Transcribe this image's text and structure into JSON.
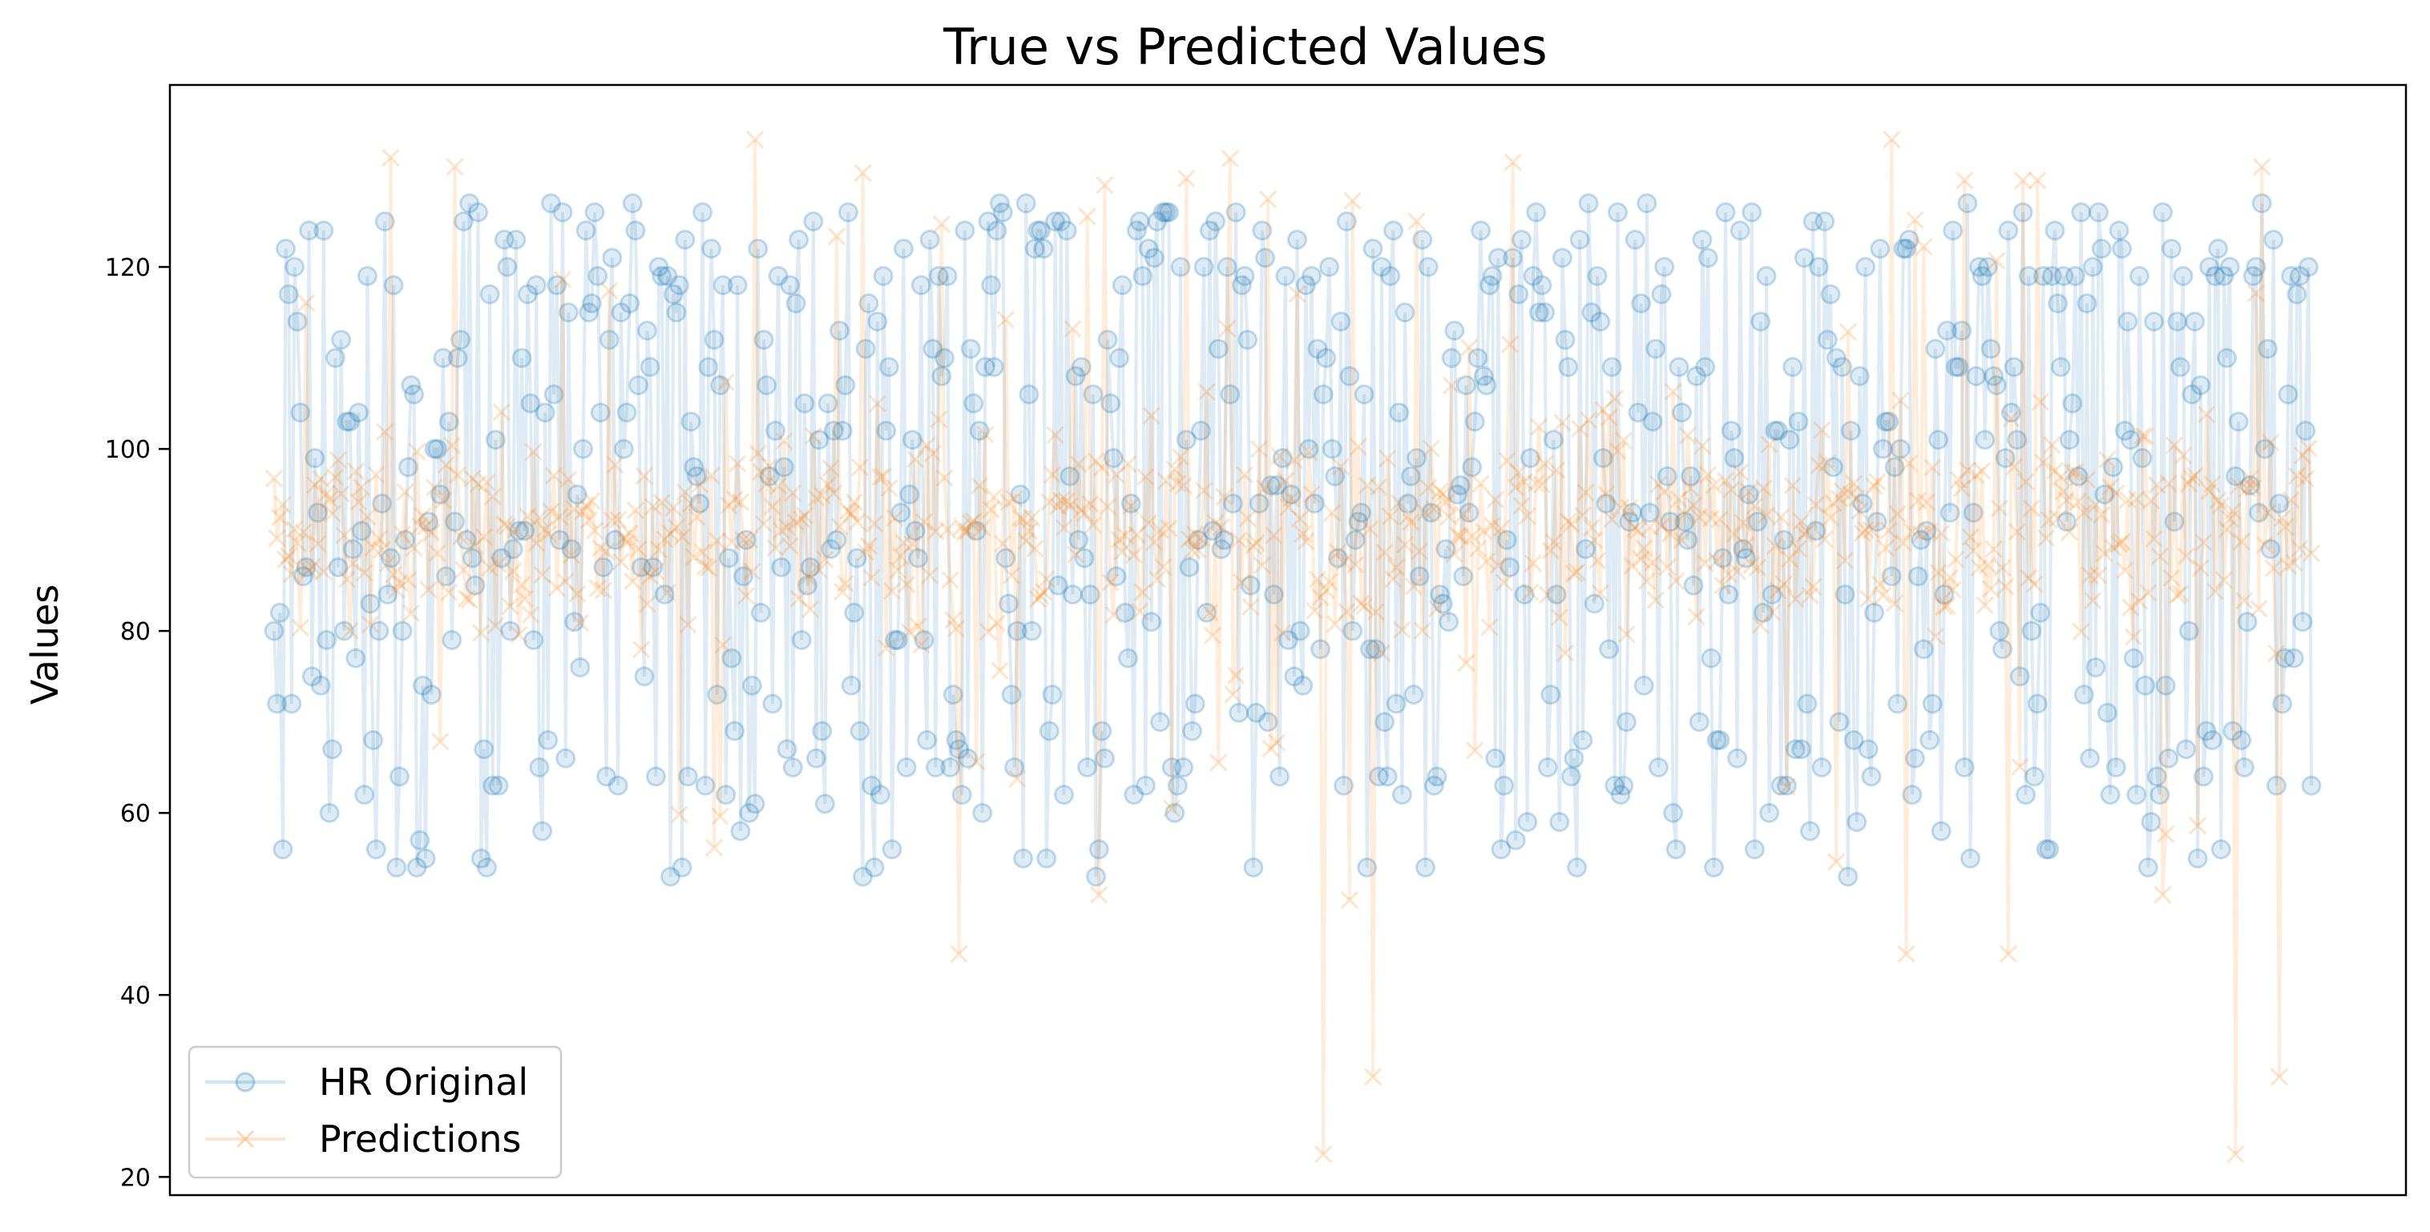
{
  "chart_data": {
    "type": "line",
    "title": "True vs Predicted Values",
    "xlabel": "",
    "ylabel": "Values",
    "ylim": [
      18,
      140
    ],
    "yticks": [
      20,
      40,
      60,
      80,
      100,
      120
    ],
    "x_ticks_visible": false,
    "grid": false,
    "legend_position": "lower-left",
    "n_points": 700,
    "series": [
      {
        "name": "HR Original",
        "color": "#1f77b4",
        "marker": "o",
        "alpha": 0.15,
        "value_range": [
          53,
          127
        ],
        "typical_band": [
          60,
          127
        ]
      },
      {
        "name": "Predictions",
        "color": "#ff7f0e",
        "marker": "x",
        "alpha": 0.15,
        "value_range": [
          22.5,
          134
        ],
        "typical_band": [
          75,
          105
        ],
        "center": 91
      }
    ]
  }
}
